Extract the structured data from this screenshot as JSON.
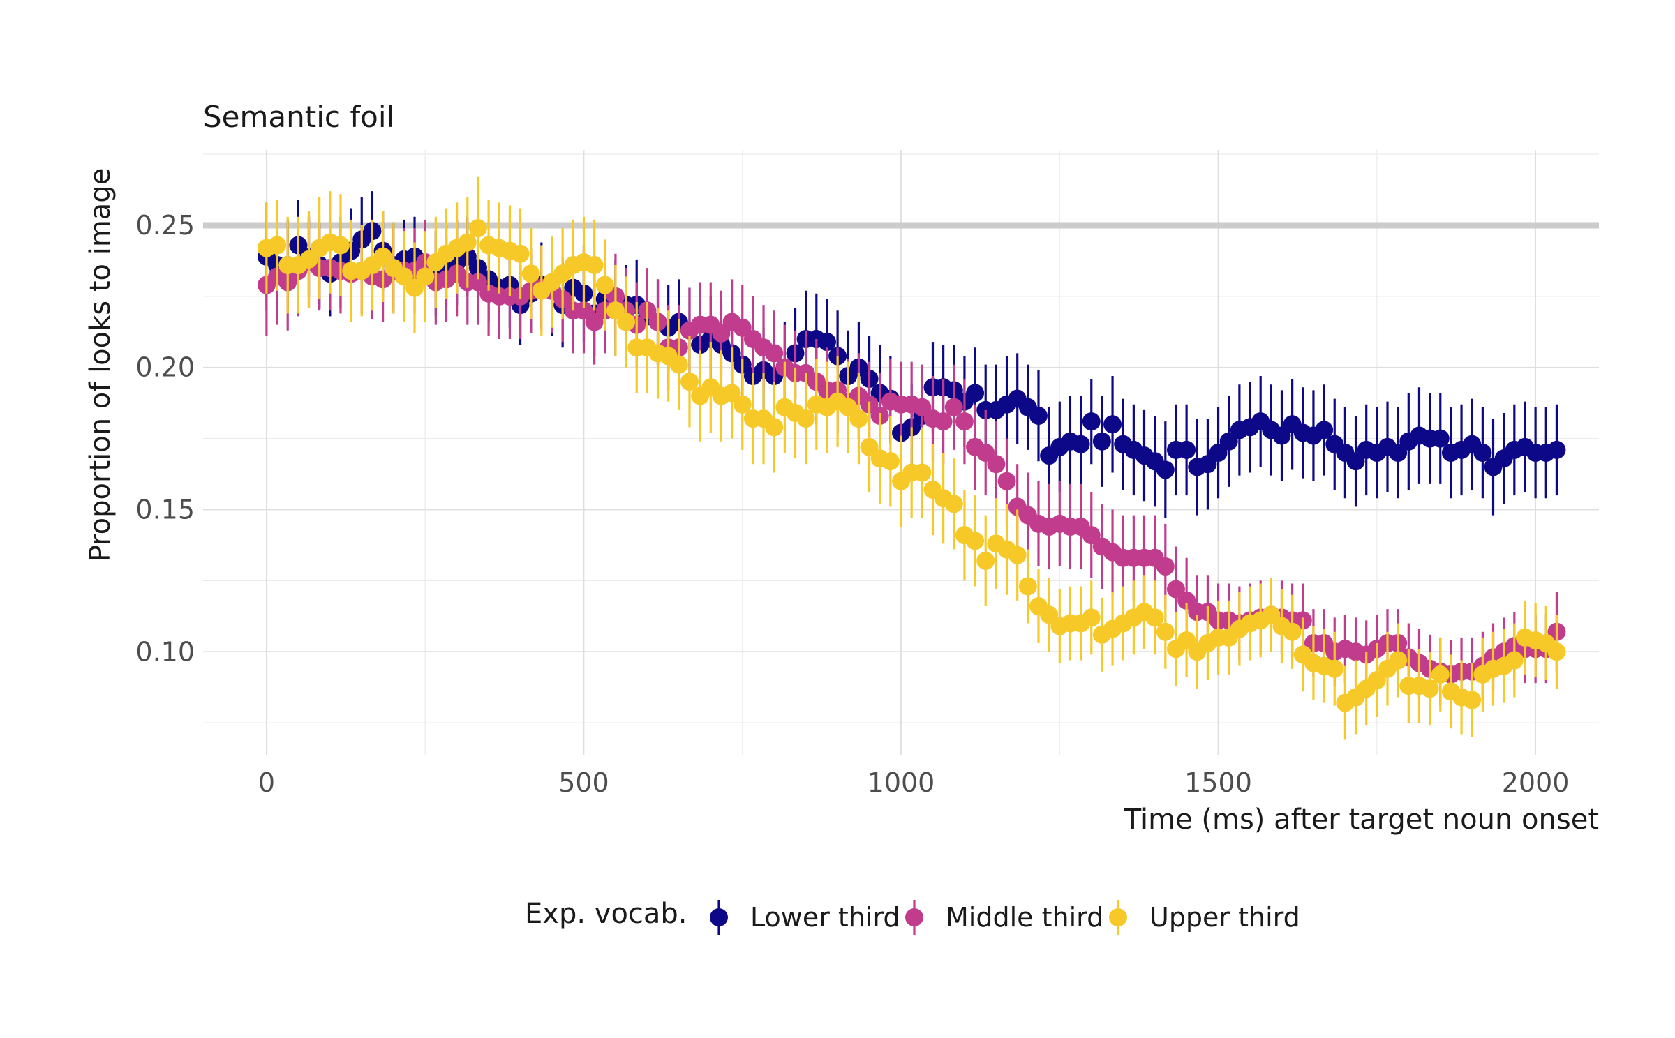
{
  "chart_data": {
    "type": "scatter",
    "title": "Semantic foil",
    "xlabel": "Time (ms) after target noun onset",
    "ylabel": "Proportion of looks to image",
    "xlim": [
      -100,
      2100
    ],
    "ylim": [
      0.0635,
      0.2765
    ],
    "x_ticks": [
      0,
      500,
      1000,
      1500,
      2000
    ],
    "x_tick_labels": [
      "0",
      "500",
      "1000",
      "1500",
      "2000"
    ],
    "y_ticks": [
      0.1,
      0.15,
      0.2,
      0.25
    ],
    "y_tick_labels": [
      "0.10",
      "0.15",
      "0.20",
      "0.25"
    ],
    "grid": true,
    "reference_line": {
      "y": 0.25,
      "color": "#cccccc"
    },
    "legend": {
      "title": "Exp. vocab.",
      "position": "bottom"
    },
    "x_start": 0,
    "x_step": 16.667,
    "series": [
      {
        "name": "Lower third",
        "color": "#0d0887",
        "values": [
          0.239,
          0.236,
          0.236,
          0.243,
          0.239,
          0.236,
          0.233,
          0.237,
          0.241,
          0.245,
          0.248,
          0.241,
          0.236,
          0.238,
          0.239,
          0.232,
          0.233,
          0.236,
          0.237,
          0.239,
          0.235,
          0.231,
          0.228,
          0.229,
          0.222,
          0.226,
          0.229,
          0.227,
          0.222,
          0.228,
          0.226,
          0.219,
          0.224,
          0.221,
          0.222,
          0.222,
          0.218,
          0.216,
          0.214,
          0.216,
          0.213,
          0.208,
          0.21,
          0.208,
          0.205,
          0.201,
          0.197,
          0.199,
          0.197,
          0.2,
          0.205,
          0.21,
          0.21,
          0.209,
          0.204,
          0.197,
          0.2,
          0.196,
          0.191,
          0.189,
          0.177,
          0.179,
          0.183,
          0.193,
          0.193,
          0.192,
          0.188,
          0.191,
          0.185,
          0.185,
          0.187,
          0.189,
          0.186,
          0.183,
          0.169,
          0.172,
          0.174,
          0.173,
          0.181,
          0.174,
          0.18,
          0.173,
          0.171,
          0.169,
          0.167,
          0.164,
          0.171,
          0.171,
          0.165,
          0.166,
          0.17,
          0.174,
          0.178,
          0.179,
          0.181,
          0.178,
          0.176,
          0.18,
          0.177,
          0.176,
          0.178,
          0.173,
          0.17,
          0.167,
          0.171,
          0.17,
          0.172,
          0.17,
          0.174,
          0.176,
          0.175,
          0.175,
          0.17,
          0.171,
          0.173,
          0.17,
          0.165,
          0.168,
          0.171,
          0.172,
          0.17,
          0.17,
          0.171
        ],
        "errors": [
          0.019,
          0.019,
          0.016,
          0.016,
          0.014,
          0.015,
          0.015,
          0.016,
          0.015,
          0.015,
          0.014,
          0.014,
          0.015,
          0.014,
          0.014,
          0.014,
          0.015,
          0.014,
          0.015,
          0.014,
          0.015,
          0.015,
          0.014,
          0.015,
          0.014,
          0.014,
          0.015,
          0.016,
          0.015,
          0.016,
          0.017,
          0.015,
          0.015,
          0.017,
          0.014,
          0.016,
          0.014,
          0.015,
          0.015,
          0.015,
          0.015,
          0.015,
          0.015,
          0.014,
          0.015,
          0.014,
          0.017,
          0.015,
          0.015,
          0.016,
          0.016,
          0.017,
          0.016,
          0.015,
          0.016,
          0.016,
          0.016,
          0.015,
          0.017,
          0.015,
          0.016,
          0.015,
          0.016,
          0.016,
          0.015,
          0.016,
          0.016,
          0.016,
          0.016,
          0.016,
          0.017,
          0.016,
          0.015,
          0.016,
          0.017,
          0.016,
          0.016,
          0.017,
          0.015,
          0.016,
          0.017,
          0.016,
          0.016,
          0.016,
          0.016,
          0.017,
          0.016,
          0.016,
          0.017,
          0.016,
          0.016,
          0.016,
          0.016,
          0.016,
          0.016,
          0.016,
          0.016,
          0.016,
          0.016,
          0.016,
          0.016,
          0.016,
          0.016,
          0.016,
          0.016,
          0.016,
          0.016,
          0.016,
          0.017,
          0.017,
          0.016,
          0.016,
          0.016,
          0.016,
          0.016,
          0.016,
          0.017,
          0.016,
          0.016,
          0.016,
          0.016,
          0.016,
          0.016
        ]
      },
      {
        "name": "Middle third",
        "color": "#c13c8c",
        "values": [
          0.229,
          0.232,
          0.23,
          0.234,
          0.237,
          0.235,
          0.235,
          0.234,
          0.233,
          0.234,
          0.232,
          0.231,
          0.234,
          0.234,
          0.234,
          0.237,
          0.23,
          0.231,
          0.233,
          0.23,
          0.23,
          0.226,
          0.225,
          0.225,
          0.225,
          0.227,
          0.228,
          0.227,
          0.224,
          0.22,
          0.22,
          0.216,
          0.22,
          0.225,
          0.22,
          0.215,
          0.22,
          0.216,
          0.207,
          0.207,
          0.213,
          0.215,
          0.215,
          0.212,
          0.216,
          0.214,
          0.21,
          0.207,
          0.205,
          0.2,
          0.198,
          0.198,
          0.195,
          0.192,
          0.192,
          0.188,
          0.19,
          0.187,
          0.183,
          0.188,
          0.187,
          0.187,
          0.186,
          0.182,
          0.181,
          0.186,
          0.181,
          0.172,
          0.17,
          0.166,
          0.16,
          0.151,
          0.148,
          0.145,
          0.144,
          0.145,
          0.144,
          0.144,
          0.141,
          0.137,
          0.135,
          0.133,
          0.133,
          0.133,
          0.133,
          0.13,
          0.122,
          0.118,
          0.114,
          0.114,
          0.111,
          0.111,
          0.11,
          0.111,
          0.112,
          0.113,
          0.112,
          0.111,
          0.111,
          0.103,
          0.103,
          0.1,
          0.101,
          0.1,
          0.099,
          0.101,
          0.103,
          0.103,
          0.098,
          0.096,
          0.094,
          0.093,
          0.092,
          0.093,
          0.093,
          0.095,
          0.098,
          0.1,
          0.102,
          0.101,
          0.101,
          0.101,
          0.107
        ],
        "errors": [
          0.018,
          0.017,
          0.017,
          0.016,
          0.016,
          0.015,
          0.015,
          0.015,
          0.015,
          0.015,
          0.015,
          0.015,
          0.015,
          0.015,
          0.015,
          0.015,
          0.015,
          0.015,
          0.015,
          0.015,
          0.015,
          0.015,
          0.015,
          0.015,
          0.015,
          0.015,
          0.015,
          0.015,
          0.015,
          0.015,
          0.015,
          0.015,
          0.015,
          0.015,
          0.015,
          0.015,
          0.015,
          0.015,
          0.015,
          0.015,
          0.015,
          0.015,
          0.015,
          0.015,
          0.015,
          0.015,
          0.015,
          0.015,
          0.015,
          0.015,
          0.015,
          0.015,
          0.015,
          0.015,
          0.015,
          0.015,
          0.015,
          0.015,
          0.015,
          0.015,
          0.015,
          0.015,
          0.015,
          0.015,
          0.015,
          0.015,
          0.015,
          0.015,
          0.015,
          0.015,
          0.015,
          0.015,
          0.015,
          0.015,
          0.015,
          0.015,
          0.015,
          0.015,
          0.015,
          0.015,
          0.015,
          0.015,
          0.015,
          0.015,
          0.015,
          0.015,
          0.015,
          0.015,
          0.013,
          0.013,
          0.013,
          0.013,
          0.013,
          0.013,
          0.013,
          0.013,
          0.013,
          0.013,
          0.013,
          0.012,
          0.012,
          0.012,
          0.012,
          0.012,
          0.012,
          0.012,
          0.012,
          0.012,
          0.012,
          0.012,
          0.012,
          0.012,
          0.012,
          0.012,
          0.012,
          0.012,
          0.012,
          0.012,
          0.012,
          0.012,
          0.012,
          0.012,
          0.014
        ]
      },
      {
        "name": "Upper third",
        "color": "#f7c928",
        "values": [
          0.242,
          0.243,
          0.236,
          0.236,
          0.238,
          0.242,
          0.244,
          0.243,
          0.234,
          0.234,
          0.236,
          0.239,
          0.235,
          0.232,
          0.228,
          0.232,
          0.237,
          0.24,
          0.242,
          0.244,
          0.249,
          0.243,
          0.242,
          0.241,
          0.24,
          0.233,
          0.227,
          0.23,
          0.233,
          0.236,
          0.237,
          0.236,
          0.229,
          0.22,
          0.216,
          0.207,
          0.207,
          0.205,
          0.204,
          0.201,
          0.195,
          0.19,
          0.193,
          0.19,
          0.191,
          0.187,
          0.182,
          0.182,
          0.179,
          0.186,
          0.184,
          0.182,
          0.187,
          0.186,
          0.188,
          0.186,
          0.182,
          0.172,
          0.168,
          0.167,
          0.16,
          0.163,
          0.163,
          0.157,
          0.154,
          0.152,
          0.141,
          0.139,
          0.132,
          0.138,
          0.136,
          0.134,
          0.123,
          0.116,
          0.113,
          0.109,
          0.11,
          0.11,
          0.112,
          0.106,
          0.108,
          0.11,
          0.112,
          0.114,
          0.112,
          0.107,
          0.101,
          0.104,
          0.1,
          0.103,
          0.105,
          0.105,
          0.108,
          0.11,
          0.111,
          0.113,
          0.109,
          0.107,
          0.099,
          0.096,
          0.095,
          0.094,
          0.082,
          0.084,
          0.087,
          0.09,
          0.094,
          0.097,
          0.088,
          0.088,
          0.087,
          0.092,
          0.086,
          0.084,
          0.083,
          0.092,
          0.094,
          0.095,
          0.097,
          0.105,
          0.104,
          0.103,
          0.1
        ],
        "errors": [
          0.016,
          0.016,
          0.017,
          0.017,
          0.017,
          0.018,
          0.018,
          0.018,
          0.018,
          0.016,
          0.016,
          0.016,
          0.016,
          0.016,
          0.016,
          0.016,
          0.016,
          0.016,
          0.016,
          0.016,
          0.018,
          0.016,
          0.016,
          0.016,
          0.016,
          0.016,
          0.016,
          0.016,
          0.016,
          0.016,
          0.016,
          0.016,
          0.016,
          0.016,
          0.016,
          0.016,
          0.016,
          0.016,
          0.016,
          0.016,
          0.016,
          0.016,
          0.016,
          0.016,
          0.016,
          0.016,
          0.016,
          0.016,
          0.016,
          0.016,
          0.016,
          0.016,
          0.016,
          0.016,
          0.016,
          0.016,
          0.016,
          0.016,
          0.016,
          0.016,
          0.016,
          0.016,
          0.016,
          0.016,
          0.016,
          0.016,
          0.016,
          0.016,
          0.016,
          0.016,
          0.016,
          0.016,
          0.013,
          0.013,
          0.013,
          0.013,
          0.013,
          0.013,
          0.013,
          0.013,
          0.013,
          0.013,
          0.013,
          0.013,
          0.013,
          0.013,
          0.013,
          0.013,
          0.013,
          0.013,
          0.013,
          0.013,
          0.013,
          0.013,
          0.013,
          0.013,
          0.013,
          0.013,
          0.013,
          0.013,
          0.013,
          0.013,
          0.013,
          0.013,
          0.013,
          0.013,
          0.013,
          0.013,
          0.013,
          0.013,
          0.013,
          0.013,
          0.013,
          0.013,
          0.013,
          0.013,
          0.013,
          0.013,
          0.013,
          0.013,
          0.013,
          0.013,
          0.013
        ]
      }
    ]
  }
}
